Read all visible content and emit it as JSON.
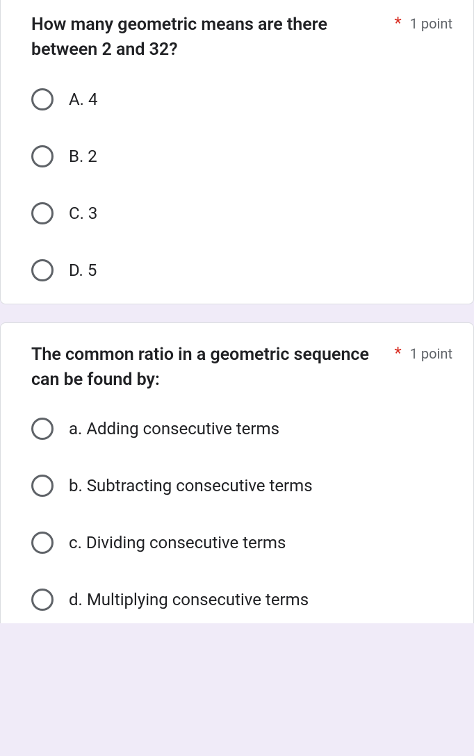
{
  "questions": [
    {
      "text": "How many geometric means are there between 2 and 32?",
      "required": "*",
      "points": "1 point",
      "options": [
        {
          "label": "A. 4"
        },
        {
          "label": "B. 2"
        },
        {
          "label": "C. 3"
        },
        {
          "label": "D. 5"
        }
      ]
    },
    {
      "text": "The common ratio in a geometric sequence can be found by:",
      "required": "*",
      "points": "1 point",
      "options": [
        {
          "label": "a. Adding consecutive terms"
        },
        {
          "label": "b. Subtracting consecutive terms"
        },
        {
          "label": "c. Dividing consecutive terms"
        },
        {
          "label": "d. Multiplying consecutive terms"
        }
      ]
    }
  ],
  "colors": {
    "background": "#f0ebf8",
    "card_bg": "#ffffff",
    "border": "#dadce0",
    "text_primary": "#202124",
    "text_secondary": "#5f6368",
    "required": "#d93025",
    "radio_border": "#5f6368"
  }
}
